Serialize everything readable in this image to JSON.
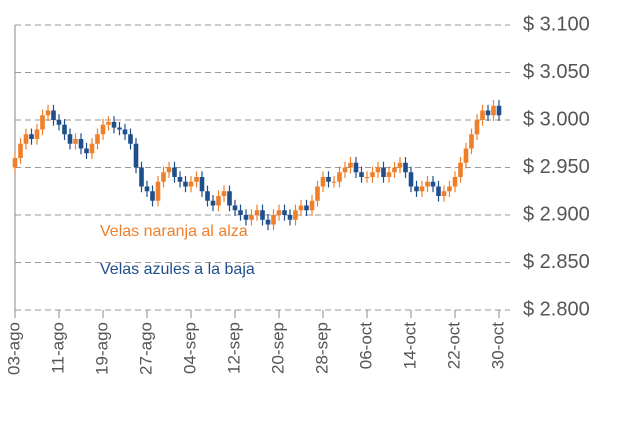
{
  "chart_data": {
    "type": "candlestick",
    "up_color": "#f07f2a",
    "down_color": "#1f4e8c",
    "categories": [
      "03-ago",
      null,
      null,
      null,
      null,
      null,
      null,
      null,
      "11-ago",
      null,
      null,
      null,
      null,
      null,
      null,
      null,
      "19-ago",
      null,
      null,
      null,
      null,
      null,
      null,
      null,
      "27-ago",
      null,
      null,
      null,
      null,
      null,
      null,
      null,
      "04-sep",
      null,
      null,
      null,
      null,
      null,
      null,
      null,
      "12-sep",
      null,
      null,
      null,
      null,
      null,
      null,
      null,
      "20-sep",
      null,
      null,
      null,
      null,
      null,
      null,
      null,
      "28-sep",
      null,
      null,
      null,
      null,
      null,
      null,
      null,
      "06-oct",
      null,
      null,
      null,
      null,
      null,
      null,
      null,
      "14-oct",
      null,
      null,
      null,
      null,
      null,
      null,
      null,
      "22-oct",
      null,
      null,
      null,
      null,
      null,
      null,
      null,
      "30-oct"
    ],
    "open": [
      2950,
      2960,
      2975,
      2985,
      2980,
      2990,
      3005,
      3010,
      3000,
      2995,
      2985,
      2975,
      2980,
      2970,
      2965,
      2975,
      2985,
      2995,
      2998,
      2992,
      2990,
      2985,
      2975,
      2950,
      2930,
      2925,
      2915,
      2935,
      2945,
      2950,
      2940,
      2935,
      2930,
      2935,
      2940,
      2925,
      2915,
      2910,
      2920,
      2925,
      2910,
      2905,
      2900,
      2895,
      2900,
      2905,
      2895,
      2890,
      2900,
      2905,
      2900,
      2895,
      2905,
      2910,
      2905,
      2915,
      2930,
      2940,
      2935,
      2935,
      2945,
      2950,
      2955,
      2945,
      2940,
      2940,
      2945,
      2950,
      2940,
      2945,
      2950,
      2955,
      2945,
      2930,
      2925,
      2930,
      2935,
      2930,
      2920,
      2925,
      2930,
      2940,
      2955,
      2970,
      2985,
      3000,
      3010,
      3005,
      3015
    ],
    "high": [
      2966,
      2981,
      2991,
      2991,
      2996,
      3011,
      3016,
      3016,
      3006,
      3001,
      2991,
      2986,
      2986,
      2976,
      2981,
      2991,
      3001,
      3004,
      3004,
      2998,
      2996,
      2991,
      2981,
      2956,
      2936,
      2931,
      2941,
      2951,
      2956,
      2956,
      2946,
      2941,
      2941,
      2946,
      2946,
      2931,
      2921,
      2926,
      2931,
      2931,
      2916,
      2911,
      2906,
      2906,
      2911,
      2911,
      2901,
      2906,
      2911,
      2911,
      2906,
      2911,
      2916,
      2916,
      2921,
      2936,
      2946,
      2946,
      2941,
      2951,
      2956,
      2961,
      2961,
      2951,
      2946,
      2951,
      2956,
      2956,
      2951,
      2956,
      2961,
      2961,
      2951,
      2936,
      2936,
      2941,
      2941,
      2936,
      2931,
      2936,
      2946,
      2961,
      2976,
      2991,
      3006,
      3016,
      3016,
      3021,
      3021
    ],
    "low": [
      2944,
      2954,
      2969,
      2974,
      2974,
      2984,
      2999,
      2994,
      2989,
      2979,
      2969,
      2969,
      2964,
      2959,
      2959,
      2969,
      2979,
      2989,
      2986,
      2984,
      2979,
      2969,
      2944,
      2924,
      2919,
      2909,
      2909,
      2929,
      2939,
      2934,
      2929,
      2924,
      2924,
      2929,
      2919,
      2909,
      2904,
      2904,
      2914,
      2904,
      2899,
      2894,
      2889,
      2889,
      2894,
      2889,
      2884,
      2884,
      2894,
      2894,
      2889,
      2889,
      2899,
      2899,
      2899,
      2909,
      2924,
      2929,
      2929,
      2929,
      2939,
      2944,
      2939,
      2934,
      2934,
      2934,
      2939,
      2934,
      2934,
      2939,
      2944,
      2939,
      2924,
      2919,
      2919,
      2924,
      2924,
      2914,
      2914,
      2919,
      2924,
      2934,
      2949,
      2964,
      2979,
      2994,
      2999,
      2999,
      2999
    ],
    "close": [
      2960,
      2975,
      2985,
      2980,
      2990,
      3005,
      3010,
      3000,
      2995,
      2985,
      2975,
      2980,
      2970,
      2965,
      2975,
      2985,
      2995,
      2998,
      2992,
      2990,
      2985,
      2975,
      2950,
      2930,
      2925,
      2915,
      2935,
      2945,
      2950,
      2940,
      2935,
      2930,
      2935,
      2940,
      2925,
      2915,
      2910,
      2920,
      2925,
      2910,
      2905,
      2900,
      2895,
      2900,
      2905,
      2895,
      2890,
      2900,
      2905,
      2900,
      2895,
      2905,
      2910,
      2905,
      2915,
      2930,
      2940,
      2935,
      2935,
      2945,
      2950,
      2955,
      2945,
      2940,
      2940,
      2945,
      2950,
      2940,
      2945,
      2950,
      2955,
      2945,
      2930,
      2925,
      2930,
      2935,
      2930,
      2920,
      2925,
      2930,
      2940,
      2955,
      2970,
      2985,
      3000,
      3010,
      3005,
      3015,
      3005
    ],
    "ylim": [
      2800,
      3100
    ],
    "yticks": [
      {
        "value": 2800,
        "label": "$ 2.800"
      },
      {
        "value": 2850,
        "label": "$ 2.850"
      },
      {
        "value": 2900,
        "label": "$ 2.900"
      },
      {
        "value": 2950,
        "label": "$ 2.950"
      },
      {
        "value": 3000,
        "label": "$ 3.000"
      },
      {
        "value": 3050,
        "label": "$ 3.050"
      },
      {
        "value": 3100,
        "label": "$ 3.100"
      }
    ],
    "grid": true,
    "annotations": [
      {
        "text": "Velas naranja al alza",
        "color": "#f07f2a"
      },
      {
        "text": "Velas azules a la baja",
        "color": "#1f4e8c"
      }
    ]
  }
}
